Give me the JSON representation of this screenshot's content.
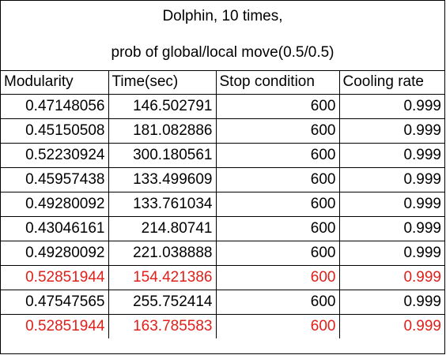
{
  "title": {
    "line1": "Dolphin, 10 times,",
    "line2": "prob of global/local move(0.5/0.5)"
  },
  "columns": [
    "Modularity",
    "Time(sec)",
    "Stop condition",
    "Cooling rate"
  ],
  "rows": [
    {
      "modularity": "0.47148056",
      "time": "146.502791",
      "stop": "600",
      "cooling": "0.999",
      "highlight": false
    },
    {
      "modularity": "0.45150508",
      "time": "181.082886",
      "stop": "600",
      "cooling": "0.999",
      "highlight": false
    },
    {
      "modularity": "0.52230924",
      "time": "300.180561",
      "stop": "600",
      "cooling": "0.999",
      "highlight": false
    },
    {
      "modularity": "0.45957438",
      "time": "133.499609",
      "stop": "600",
      "cooling": "0.999",
      "highlight": false
    },
    {
      "modularity": "0.49280092",
      "time": "133.761034",
      "stop": "600",
      "cooling": "0.999",
      "highlight": false
    },
    {
      "modularity": "0.43046161",
      "time": "214.80741",
      "stop": "600",
      "cooling": "0.999",
      "highlight": false
    },
    {
      "modularity": "0.49280092",
      "time": "221.038888",
      "stop": "600",
      "cooling": "0.999",
      "highlight": false
    },
    {
      "modularity": "0.52851944",
      "time": "154.421386",
      "stop": "600",
      "cooling": "0.999",
      "highlight": true
    },
    {
      "modularity": "0.47547565",
      "time": "255.752414",
      "stop": "600",
      "cooling": "0.999",
      "highlight": false
    },
    {
      "modularity": "0.52851944",
      "time": "163.785583",
      "stop": "600",
      "cooling": "0.999",
      "highlight": true
    }
  ],
  "colors": {
    "highlight": "#e0201a",
    "text": "#000000",
    "border": "#000000",
    "background": "#ffffff"
  }
}
